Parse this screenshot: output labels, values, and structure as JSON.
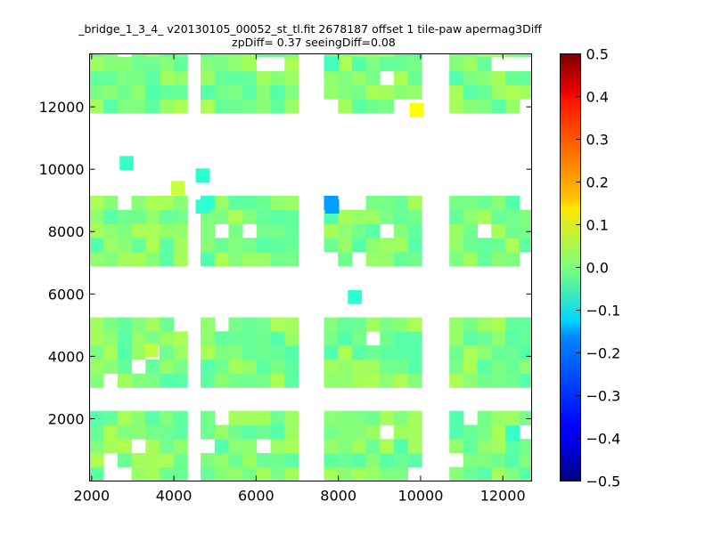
{
  "chart_data": {
    "type": "heatmap",
    "title": "_bridge_1_3_4_ v20130105_00052_st_tl.fit 2678187 offset 1 tile-paw apermag3Diff",
    "subtitle": "zpDiff= 0.37 seeingDiff=0.08",
    "xlabel": "",
    "ylabel": "",
    "xlim": [
      1950,
      12700
    ],
    "ylim": [
      0,
      13700
    ],
    "x_ticks": [
      2000,
      4000,
      6000,
      8000,
      10000,
      12000
    ],
    "x_tick_labels": [
      "2000",
      "4000",
      "6000",
      "8000",
      "10000",
      "12000"
    ],
    "y_ticks": [
      2000,
      4000,
      6000,
      8000,
      10000,
      12000
    ],
    "y_tick_labels": [
      "2000",
      "4000",
      "6000",
      "8000",
      "10000",
      "12000"
    ],
    "colorbar": {
      "colormap": "jet",
      "vmin": -0.5,
      "vmax": 0.5,
      "ticks": [
        0.5,
        0.4,
        0.3,
        0.2,
        0.1,
        0.0,
        -0.1,
        -0.2,
        -0.3,
        -0.4,
        -0.5
      ],
      "tick_labels": [
        "0.5",
        "0.4",
        "0.3",
        "0.2",
        "0.1",
        "0.0",
        "−0.1",
        "−0.2",
        "−0.3",
        "−0.4",
        "−0.5"
      ]
    },
    "cell_width": 340,
    "cell_height": 450,
    "blocks": [
      {
        "x0": 1950,
        "y0": 0,
        "nx": 7,
        "ny": 5
      },
      {
        "x0": 4650,
        "y0": 0,
        "nx": 7,
        "ny": 5
      },
      {
        "x0": 7650,
        "y0": 0,
        "nx": 7,
        "ny": 5
      },
      {
        "x0": 10700,
        "y0": 0,
        "nx": 7,
        "ny": 5
      },
      {
        "x0": 1950,
        "y0": 3000,
        "nx": 7,
        "ny": 5
      },
      {
        "x0": 4650,
        "y0": 3000,
        "nx": 7,
        "ny": 5
      },
      {
        "x0": 7650,
        "y0": 3000,
        "nx": 7,
        "ny": 5
      },
      {
        "x0": 10700,
        "y0": 3000,
        "nx": 7,
        "ny": 5
      },
      {
        "x0": 1950,
        "y0": 6900,
        "nx": 7,
        "ny": 5
      },
      {
        "x0": 4650,
        "y0": 6900,
        "nx": 7,
        "ny": 5
      },
      {
        "x0": 7650,
        "y0": 6900,
        "nx": 7,
        "ny": 5
      },
      {
        "x0": 10700,
        "y0": 6900,
        "nx": 7,
        "ny": 5
      },
      {
        "x0": 1950,
        "y0": 11800,
        "nx": 7,
        "ny": 5
      },
      {
        "x0": 4650,
        "y0": 11800,
        "nx": 7,
        "ny": 5
      },
      {
        "x0": 7650,
        "y0": 11800,
        "nx": 7,
        "ny": 5
      },
      {
        "x0": 10700,
        "y0": 11800,
        "nx": 7,
        "ny": 5
      }
    ],
    "notable_cells": [
      {
        "x": 9900,
        "y": 11900,
        "value": 0.12
      },
      {
        "x": 7850,
        "y": 8800,
        "value": -0.22
      },
      {
        "x": 2850,
        "y": 10200,
        "value": -0.07
      },
      {
        "x": 4700,
        "y": 9800,
        "value": -0.08
      },
      {
        "x": 4700,
        "y": 8800,
        "value": -0.08
      },
      {
        "x": 8400,
        "y": 5900,
        "value": -0.08
      },
      {
        "x": 12250,
        "y": 1500,
        "value": -0.07
      },
      {
        "x": 7850,
        "y": 13400,
        "value": -0.06
      },
      {
        "x": 3450,
        "y": 4200,
        "value": 0.06
      },
      {
        "x": 4100,
        "y": 9400,
        "value": 0.07
      }
    ]
  }
}
